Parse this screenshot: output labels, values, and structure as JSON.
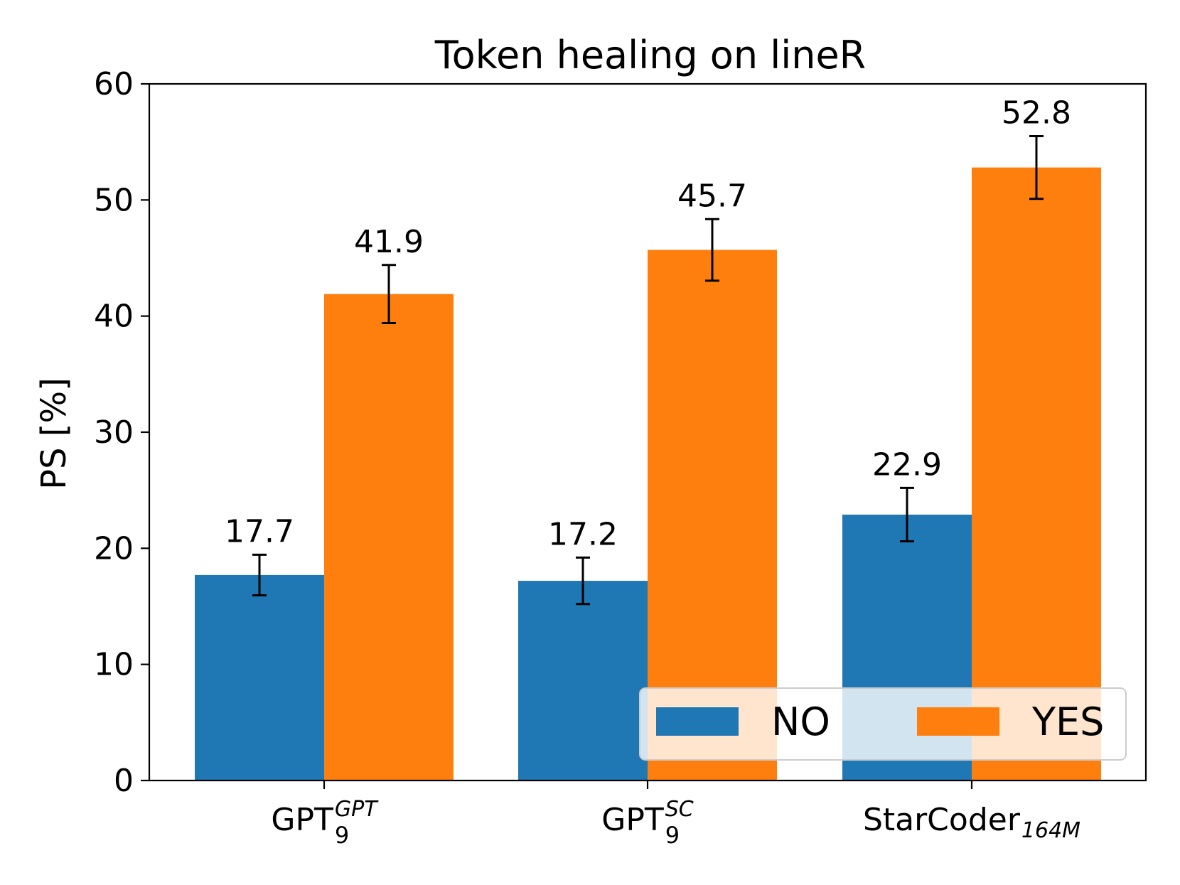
{
  "chart_data": {
    "type": "bar",
    "title": "Token healing on lineR",
    "ylabel": "PS [%]",
    "xlabel": "",
    "ylim": [
      0,
      60
    ],
    "yticks": [
      0,
      10,
      20,
      30,
      40,
      50,
      60
    ],
    "categories": [
      {
        "base": "GPT",
        "sub": "9",
        "sup": "GPT"
      },
      {
        "base": "GPT",
        "sub": "9",
        "sup": "SC"
      },
      {
        "base": "StarCoder",
        "sub": "164M",
        "sup": ""
      }
    ],
    "series": [
      {
        "name": "NO",
        "color": "#1f77b4",
        "values": [
          17.7,
          17.2,
          22.9
        ],
        "errors": [
          1.75,
          2.0,
          2.3
        ],
        "labels": [
          "17.7",
          "17.2",
          "22.9"
        ]
      },
      {
        "name": "YES",
        "color": "#ff7f0e",
        "values": [
          41.9,
          45.7,
          52.8
        ],
        "errors": [
          2.5,
          2.65,
          2.7
        ],
        "labels": [
          "41.9",
          "45.7",
          "52.8"
        ]
      }
    ],
    "legend": {
      "placement": "lower-right",
      "columns": 2
    },
    "grid": false
  }
}
